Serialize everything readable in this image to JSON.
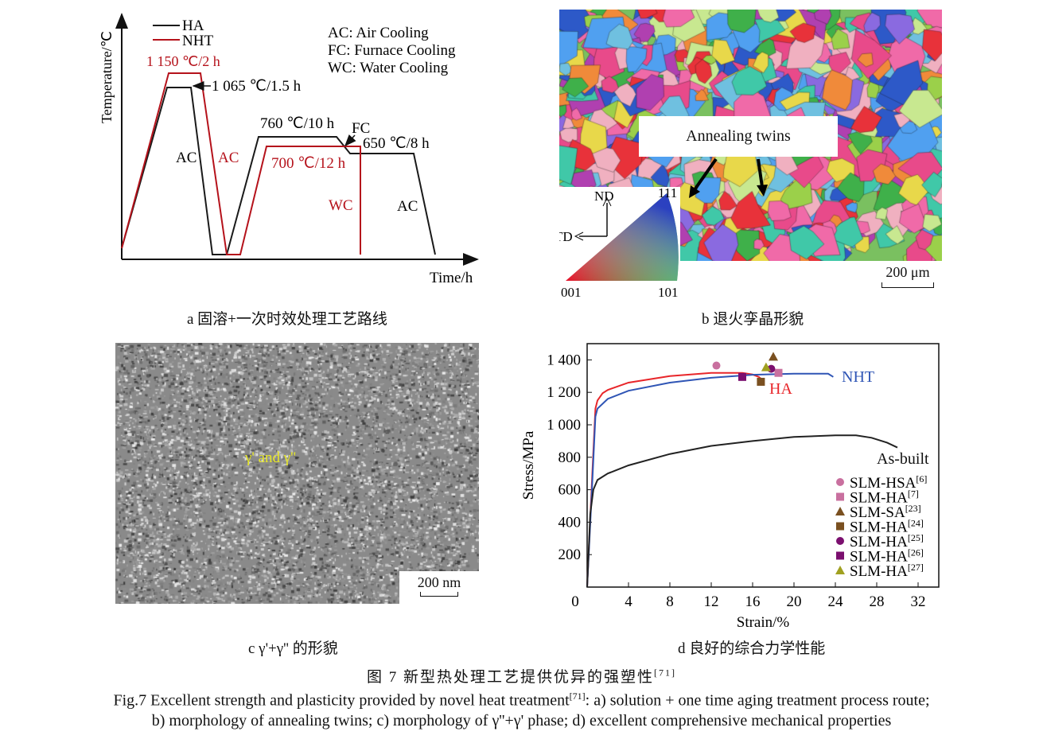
{
  "panel_a": {
    "y_axis_label": "Temperature/℃",
    "x_axis_label": "Time/h",
    "legend": [
      {
        "name": "HA",
        "color": "#1a1a1a"
      },
      {
        "name": "NHT",
        "color": "#b5121b"
      }
    ],
    "notes": [
      "AC: Air Cooling",
      "FC: Furnace Cooling",
      "WC: Water Cooling"
    ],
    "labels": {
      "nht_solution": "1 150 ℃/2 h",
      "ha_solution": "1 065 ℃/1.5 h",
      "ha_ac": "AC",
      "nht_ac": "AC",
      "ha_aging1": "760 ℃/10 h",
      "fc": "FC",
      "ha_aging2": "650 ℃/8 h",
      "nht_aging": "700 ℃/12 h",
      "wc": "WC",
      "ha_ac2": "AC"
    },
    "caption": "a  固溶+一次时效处理工艺路线"
  },
  "panel_b": {
    "annotation": "Annealing twins",
    "inset": {
      "nd": "ND",
      "td": "TD",
      "c001": "001",
      "c101": "101",
      "c111": "111"
    },
    "scale_bar": "200 μm",
    "caption": "b  退火孪晶形貌"
  },
  "panel_c": {
    "annotation": "γ' and γ''",
    "annotation_color": "#e6e62a",
    "scale_bar": "200 nm",
    "caption": "c  γ'+γ'' 的形貌"
  },
  "panel_d": {
    "caption": "d  良好的综合力学性能"
  },
  "chart_data": {
    "type": "line",
    "xlabel": "Strain/%",
    "ylabel": "Stress/MPa",
    "xlim": [
      0,
      34
    ],
    "ylim": [
      0,
      1500
    ],
    "xticks": [
      0,
      4,
      8,
      12,
      16,
      20,
      24,
      28,
      32
    ],
    "xtick_labels": [
      "0",
      "4",
      "8",
      "12",
      "16",
      "20",
      "24",
      "28",
      "32"
    ],
    "yticks": [
      200,
      400,
      600,
      800,
      1000,
      1200,
      1400
    ],
    "ytick_labels": [
      "200",
      "400",
      "600",
      "800",
      "1 000",
      "1 200",
      "1 400"
    ],
    "series": [
      {
        "name": "HA",
        "color": "#e8262a",
        "x": [
          0,
          0.5,
          0.8,
          1,
          1.5,
          2,
          4,
          8,
          12,
          15,
          16,
          16.6,
          17
        ],
        "y": [
          0,
          700,
          1100,
          1150,
          1195,
          1215,
          1260,
          1300,
          1320,
          1320,
          1310,
          1295,
          1275
        ]
      },
      {
        "name": "NHT",
        "color": "#2f55b5",
        "x": [
          0,
          0.5,
          0.8,
          1,
          2,
          4,
          8,
          12,
          16,
          20,
          23.3,
          23.8
        ],
        "y": [
          0,
          650,
          1050,
          1100,
          1160,
          1210,
          1260,
          1290,
          1308,
          1315,
          1315,
          1295
        ]
      },
      {
        "name": "As-built",
        "color": "#222222",
        "x": [
          0,
          0.3,
          0.6,
          1,
          2,
          4,
          8,
          12,
          16,
          20,
          24,
          26,
          27.5,
          29,
          30
        ],
        "y": [
          0,
          450,
          600,
          660,
          700,
          750,
          820,
          870,
          900,
          925,
          935,
          935,
          920,
          890,
          860
        ]
      }
    ],
    "points": [
      {
        "name": "SLM-HSA",
        "ref": "[6]",
        "marker": "circle",
        "color": "#c9709f",
        "x": 12.5,
        "y": 1365
      },
      {
        "name": "SLM-HA",
        "ref": "[7]",
        "marker": "square",
        "color": "#c9709f",
        "x": 18.5,
        "y": 1320
      },
      {
        "name": "SLM-SA",
        "ref": "[23]",
        "marker": "triangle",
        "color": "#7a5020",
        "x": 18,
        "y": 1420
      },
      {
        "name": "SLM-HA",
        "ref": "[24]",
        "marker": "square",
        "color": "#7a5020",
        "x": 16.8,
        "y": 1265
      },
      {
        "name": "SLM-HA",
        "ref": "[25]",
        "marker": "circle",
        "color": "#7b0f6f",
        "x": 17.8,
        "y": 1345
      },
      {
        "name": "SLM-HA",
        "ref": "[26]",
        "marker": "square",
        "color": "#7b0f6f",
        "x": 15,
        "y": 1295
      },
      {
        "name": "SLM-HA",
        "ref": "[27]",
        "marker": "triangle",
        "color": "#a0a020",
        "x": 17.3,
        "y": 1355
      }
    ],
    "legend_placement": "lower-right",
    "grid": false
  },
  "figure": {
    "cn_title": "图 7   新型热处理工艺提供优异的强塑性",
    "cn_ref": "[71]",
    "en_caption_1a": "Fig.7 Excellent strength and plasticity provided by novel heat treatment",
    "en_ref": "[71]",
    "en_caption_1b": ": a) solution + one time aging treatment process route;",
    "en_caption_2": "b) morphology of annealing twins; c) morphology of γ''+γ' phase; d) excellent comprehensive mechanical properties"
  }
}
